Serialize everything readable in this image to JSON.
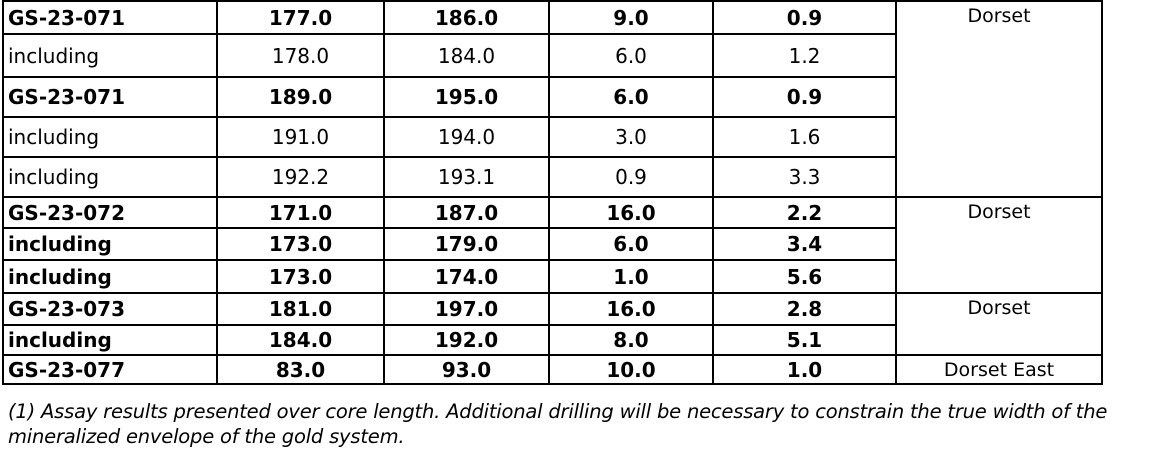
{
  "table": {
    "rows": [
      {
        "hole_id": "GS-23-071",
        "from": "177.0",
        "to": "186.0",
        "length": "9.0",
        "grade": "0.9",
        "bold": true,
        "zone": {
          "label": "Dorset",
          "rowspan": 5
        }
      },
      {
        "hole_id": "including",
        "from": "178.0",
        "to": "184.0",
        "length": "6.0",
        "grade": "1.2",
        "bold": false
      },
      {
        "hole_id": "GS-23-071",
        "from": "189.0",
        "to": "195.0",
        "length": "6.0",
        "grade": "0.9",
        "bold": true
      },
      {
        "hole_id": "including",
        "from": "191.0",
        "to": "194.0",
        "length": "3.0",
        "grade": "1.6",
        "bold": false
      },
      {
        "hole_id": "including",
        "from": "192.2",
        "to": "193.1",
        "length": "0.9",
        "grade": "3.3",
        "bold": false
      },
      {
        "hole_id": "GS-23-072",
        "from": "171.0",
        "to": "187.0",
        "length": "16.0",
        "grade": "2.2",
        "bold": true,
        "zone": {
          "label": "Dorset",
          "rowspan": 3
        }
      },
      {
        "hole_id": "including",
        "from": "173.0",
        "to": "179.0",
        "length": "6.0",
        "grade": "3.4",
        "bold": true
      },
      {
        "hole_id": "including",
        "from": "173.0",
        "to": "174.0",
        "length": "1.0",
        "grade": "5.6",
        "bold": true
      },
      {
        "hole_id": "GS-23-073",
        "from": "181.0",
        "to": "197.0",
        "length": "16.0",
        "grade": "2.8",
        "bold": true,
        "zone": {
          "label": "Dorset",
          "rowspan": 2
        }
      },
      {
        "hole_id": "including",
        "from": "184.0",
        "to": "192.0",
        "length": "8.0",
        "grade": "5.1",
        "bold": true
      },
      {
        "hole_id": "GS-23-077",
        "from": "83.0",
        "to": "93.0",
        "length": "10.0",
        "grade": "1.0",
        "bold": true,
        "zone": {
          "label": "Dorset East",
          "rowspan": 1
        }
      }
    ]
  },
  "footnote": {
    "text": "(1) Assay results presented over core length. Additional drilling will be necessary to constrain the true width of the mineralized envelope of the gold system."
  },
  "colors": {
    "border": "#000000",
    "text": "#000000",
    "background": "#ffffff"
  }
}
